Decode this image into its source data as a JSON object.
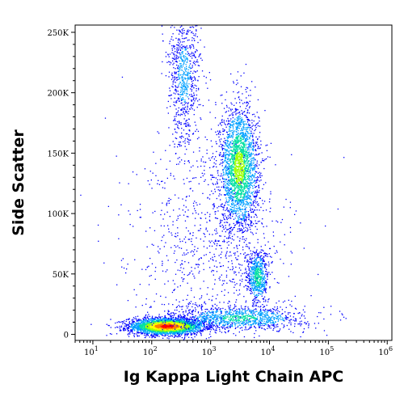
{
  "chart_data": {
    "type": "scatter",
    "subtype": "flow-cytometry-density-dot-plot",
    "xlabel": "Ig Kappa Light Chain APC",
    "ylabel": "Side Scatter",
    "x_scale": "log",
    "y_scale": "linear",
    "xlim": [
      5,
      1200000
    ],
    "ylim": [
      -5000,
      256000
    ],
    "x_ticks": [
      {
        "value": 10,
        "base": "10",
        "exp": "1"
      },
      {
        "value": 100,
        "base": "10",
        "exp": "2"
      },
      {
        "value": 1000,
        "base": "10",
        "exp": "3"
      },
      {
        "value": 10000,
        "base": "10",
        "exp": "4"
      },
      {
        "value": 100000,
        "base": "10",
        "exp": "5"
      },
      {
        "value": 1000000,
        "base": "10",
        "exp": "6"
      }
    ],
    "y_ticks": [
      {
        "value": 0,
        "label": "0"
      },
      {
        "value": 50000,
        "label": "50K"
      },
      {
        "value": 100000,
        "label": "100K"
      },
      {
        "value": 150000,
        "label": "150K"
      },
      {
        "value": 200000,
        "label": "200K"
      },
      {
        "value": 250000,
        "label": "250K"
      }
    ],
    "colormap": [
      "#0000ff",
      "#00a0ff",
      "#00e0a0",
      "#a0ff00",
      "#ffff00",
      "#ff8000",
      "#ff0000"
    ],
    "populations": [
      {
        "center_x": 180,
        "center_y": 7000,
        "spread_log_x": 0.32,
        "spread_y": 3500,
        "weight": 0.34,
        "peak_density": 1.0
      },
      {
        "center_x": 3000,
        "center_y": 138000,
        "spread_log_x": 0.16,
        "spread_y": 26000,
        "weight": 0.28,
        "peak_density": 0.5
      },
      {
        "center_x": 6200,
        "center_y": 48000,
        "spread_log_x": 0.09,
        "spread_y": 11000,
        "weight": 0.07,
        "peak_density": 0.35
      },
      {
        "center_x": 3000,
        "center_y": 14000,
        "spread_log_x": 0.55,
        "spread_y": 5000,
        "weight": 0.12,
        "peak_density": 0.3
      },
      {
        "center_x": 350,
        "center_y": 215000,
        "spread_log_x": 0.14,
        "spread_y": 30000,
        "weight": 0.09,
        "peak_density": 0.12
      },
      {
        "center_x": 1000,
        "center_y": 70000,
        "spread_log_x": 0.7,
        "spread_y": 45000,
        "weight": 0.1,
        "peak_density": 0.05
      }
    ]
  }
}
